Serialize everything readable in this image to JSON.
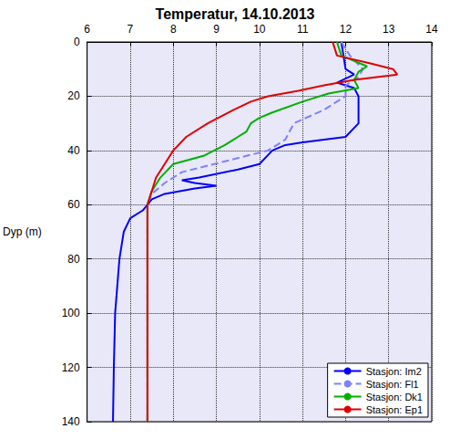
{
  "chart_data": {
    "type": "line",
    "title": "Temperatur, 14.10.2013",
    "y_label": "Dyp (m)",
    "xlim": [
      6,
      14
    ],
    "xticks": [
      6,
      7,
      8,
      9,
      10,
      11,
      12,
      13,
      14
    ],
    "ylim": [
      0,
      140
    ],
    "yticks": [
      0,
      20,
      40,
      60,
      80,
      100,
      120,
      140
    ],
    "grid": true,
    "legend": "lower right",
    "series": [
      {
        "name": "Stasjon: Im2",
        "color": "#0000ff",
        "line_style": "solid",
        "x": [
          11.9,
          12.0,
          12.2,
          11.8,
          12.2,
          12.3,
          12.3,
          12.0,
          11.0,
          10.6,
          10.3,
          10.0,
          9.5,
          8.6,
          8.2,
          8.5,
          9.0,
          8.5,
          7.8,
          7.5,
          7.4,
          7.3,
          7.0,
          6.85,
          6.75,
          6.7,
          6.65,
          6.62,
          6.6
        ],
        "values": [
          0,
          10,
          12,
          15,
          17,
          20,
          30,
          35,
          37,
          38,
          40,
          45,
          47,
          50,
          51,
          52,
          53,
          54,
          56,
          58,
          60,
          62,
          65,
          70,
          80,
          90,
          100,
          120,
          140
        ]
      },
      {
        "name": "Stasjon: Fl1",
        "color": "#8080ff",
        "line_style": "dashed",
        "x": [
          11.9,
          12.1,
          12.4,
          12.3,
          12.0,
          12.0,
          11.5,
          10.8,
          10.6,
          10.2,
          9.2,
          8.2,
          7.8,
          7.5,
          7.4,
          7.4
        ],
        "values": [
          0,
          5,
          10,
          13,
          16,
          20,
          25,
          30,
          36,
          40,
          44,
          48,
          52,
          56,
          60,
          140
        ]
      },
      {
        "name": "Stasjon: Dk1",
        "color": "#00b000",
        "line_style": "solid",
        "x": [
          11.8,
          11.9,
          12.5,
          12.3,
          12.2,
          12.3,
          11.6,
          11.0,
          10.3,
          10.0,
          9.8,
          9.7,
          9.5,
          9.2,
          8.7,
          8.0,
          7.7,
          7.5,
          7.4,
          7.4
        ],
        "values": [
          0,
          5,
          9,
          11,
          14,
          17,
          19,
          22,
          26,
          28,
          30,
          33,
          35,
          38,
          42,
          45,
          50,
          55,
          60,
          140
        ]
      },
      {
        "name": "Stasjon: Ep1",
        "color": "#e00000",
        "line_style": "solid",
        "x": [
          11.7,
          11.8,
          12.6,
          13.1,
          13.2,
          12.2,
          11.5,
          10.9,
          10.2,
          9.8,
          9.4,
          8.8,
          8.3,
          8.0,
          7.8,
          7.6,
          7.5,
          7.4,
          7.4
        ],
        "values": [
          0,
          5,
          8,
          10,
          12,
          14,
          16,
          18,
          20,
          22,
          25,
          30,
          35,
          40,
          45,
          50,
          55,
          60,
          140
        ]
      }
    ]
  }
}
